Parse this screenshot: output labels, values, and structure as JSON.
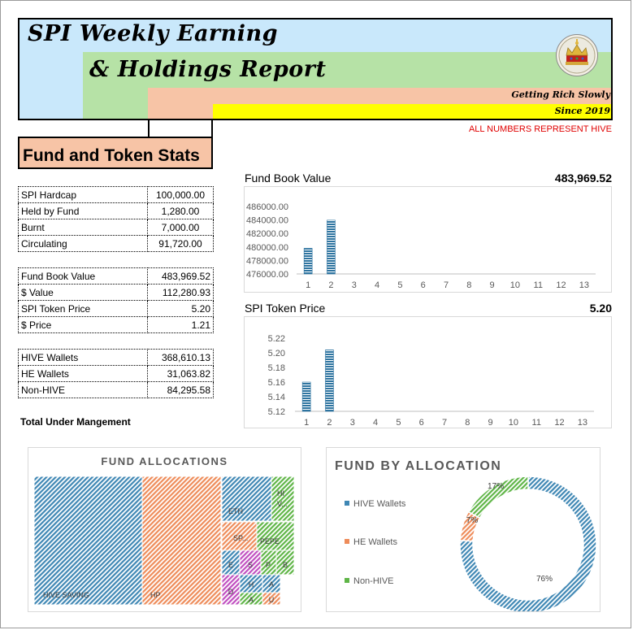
{
  "header": {
    "title_line1": "SPI Weekly Earning",
    "title_line2": "& Holdings Report",
    "tagline": "Getting Rich Slowly",
    "since": "Since 2019",
    "notice": "ALL NUMBERS REPRESENT HIVE"
  },
  "stats_title": "Fund and Token Stats",
  "token_table": [
    {
      "label": "SPI Hardcap",
      "value": "100,000.00"
    },
    {
      "label": "Held by Fund",
      "value": "1,280.00"
    },
    {
      "label": "Burnt",
      "value": "7,000.00"
    },
    {
      "label": "Circulating",
      "value": "91,720.00"
    }
  ],
  "value_table": [
    {
      "label": "Fund Book Value",
      "value": "483,969.52"
    },
    {
      "label": "$ Value",
      "value": "112,280.93"
    },
    {
      "label": "SPI Token Price",
      "value": "5.20"
    },
    {
      "label": "$ Price",
      "value": "1.21"
    }
  ],
  "wallet_table": [
    {
      "label": "HIVE Wallets",
      "value": "368,610.13"
    },
    {
      "label": "HE Wallets",
      "value": "31,063.82"
    },
    {
      "label": "Non-HIVE",
      "value": "84,295.58"
    }
  ],
  "total_label": "Total Under Mangement",
  "book_chart": {
    "title": "Fund Book Value",
    "headline": "483,969.52"
  },
  "price_chart": {
    "title": "SPI Token Price",
    "headline": "5.20"
  },
  "allocations_panel": {
    "title": "FUND ALLOCATIONS"
  },
  "donut_panel": {
    "title": "FUND BY ALLOCATION"
  },
  "colors": {
    "blue": "#3f87b4",
    "orange": "#ee8c5a",
    "green": "#5fb547",
    "sky": "#c9e8fb",
    "light_green": "#b6e2a6",
    "salmon": "#f7c4a6",
    "yellow": "#ffff00",
    "notice_red": "#e00000"
  },
  "chart_data": [
    {
      "type": "bar",
      "title": "Fund Book Value",
      "categories": [
        "1",
        "2",
        "3",
        "4",
        "5",
        "6",
        "7",
        "8",
        "9",
        "10",
        "11",
        "12",
        "13"
      ],
      "values": [
        479800,
        483970,
        null,
        null,
        null,
        null,
        null,
        null,
        null,
        null,
        null,
        null,
        null
      ],
      "y_ticks": [
        "476000.00",
        "478000.00",
        "480000.00",
        "482000.00",
        "484000.00",
        "486000.00"
      ],
      "ylim": [
        476000,
        486000
      ]
    },
    {
      "type": "bar",
      "title": "SPI Token Price",
      "categories": [
        "1",
        "2",
        "3",
        "4",
        "5",
        "6",
        "7",
        "8",
        "9",
        "10",
        "11",
        "12",
        "13"
      ],
      "values": [
        5.16,
        5.204,
        null,
        null,
        null,
        null,
        null,
        null,
        null,
        null,
        null,
        null,
        null
      ],
      "y_ticks": [
        "5.12",
        "5.14",
        "5.16",
        "5.18",
        "5.20",
        "5.22"
      ],
      "ylim": [
        5.12,
        5.22
      ]
    },
    {
      "type": "treemap",
      "title": "FUND ALLOCATIONS",
      "items": [
        {
          "label": "HIVE SAVING",
          "color": "#3f87b4"
        },
        {
          "label": "HP",
          "color": "#ee8c5a"
        },
        {
          "label": "ETH",
          "color": "#3f87b4"
        },
        {
          "label": "HI V...",
          "color": "#5fb547"
        },
        {
          "label": "SP...",
          "color": "#ee8c5a"
        },
        {
          "label": "PEPE",
          "color": "#5fb547"
        },
        {
          "label": "E",
          "color": "#3f87b4"
        },
        {
          "label": "S",
          "color": "#c04fc0"
        },
        {
          "label": "P",
          "color": "#5fb547"
        },
        {
          "label": "B",
          "color": "#5fb547"
        },
        {
          "label": "D",
          "color": "#c04fc0"
        },
        {
          "label": "H",
          "color": "#3f87b4"
        },
        {
          "label": "A",
          "color": "#3f87b4"
        },
        {
          "label": "A",
          "color": "#5fb547"
        },
        {
          "label": "U",
          "color": "#ee8c5a"
        }
      ]
    },
    {
      "type": "pie",
      "title": "FUND BY ALLOCATION",
      "series": [
        {
          "name": "HIVE Wallets",
          "value": 76,
          "label": "76%",
          "color": "#3f87b4"
        },
        {
          "name": "HE Wallets",
          "value": 7,
          "label": "7%",
          "color": "#ee8c5a"
        },
        {
          "name": "Non-HIVE",
          "value": 17,
          "label": "17%",
          "color": "#5fb547"
        }
      ],
      "legend": "left"
    }
  ]
}
